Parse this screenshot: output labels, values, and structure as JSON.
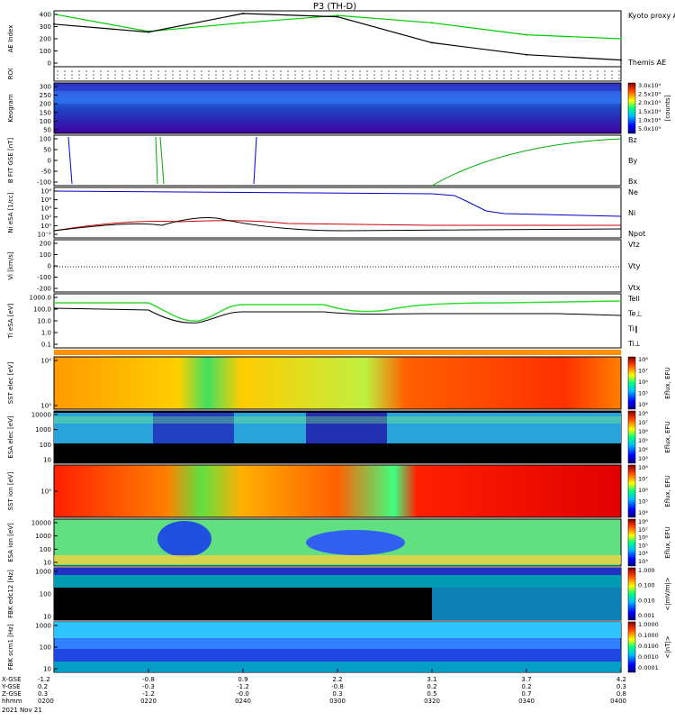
{
  "title": "P3 (TH-D)",
  "panels": [
    {
      "id": "ae",
      "ylabel": "AE Index",
      "yticks": [
        "400",
        "300",
        "200",
        "100",
        "0"
      ],
      "legend": [
        {
          "text": "Kyoto proxy AE",
          "color": "#00cc00"
        },
        {
          "text": "Themis AE",
          "color": "#000000"
        }
      ]
    },
    {
      "id": "roi",
      "ylabel": "ROI"
    },
    {
      "id": "keogram",
      "ylabel": "Keogram",
      "yticks": [
        "300",
        "250",
        "200",
        "150",
        "100",
        "50"
      ],
      "colorbar": [
        "3.0x10⁴",
        "2.5x10⁴",
        "2.0x10⁴",
        "1.5x10⁴",
        "1.0x10⁴",
        "5.0x10³"
      ],
      "cbar_label": "[counts]"
    },
    {
      "id": "bfit",
      "ylabel": "B FIT GSE [nT]",
      "yticks": [
        "100",
        "50",
        "0",
        "-50",
        "-100"
      ],
      "legend": [
        {
          "text": "Bz",
          "color": "#cc0000"
        },
        {
          "text": "By",
          "color": "#00aa00"
        },
        {
          "text": "Bx",
          "color": "#0000cc"
        }
      ]
    },
    {
      "id": "ni",
      "ylabel": "Ni eSA [1/cc]",
      "yticks": [
        "10⁸",
        "10⁶",
        "10⁴",
        "10²",
        "10⁰",
        "10⁻²"
      ],
      "legend": [
        {
          "text": "Ne",
          "color": "#cc0000"
        },
        {
          "text": "Ni",
          "color": "#000000"
        },
        {
          "text": "Npot",
          "color": "#0000cc"
        }
      ]
    },
    {
      "id": "vi",
      "ylabel": "Vi [km/s]",
      "yticks": [
        "200",
        "100",
        "0",
        "-100",
        "-200"
      ],
      "legend": [
        {
          "text": "Vtz",
          "color": "#cc0000"
        },
        {
          "text": "Vty",
          "color": "#00aa00"
        },
        {
          "text": "Vtx",
          "color": "#0000cc"
        }
      ]
    },
    {
      "id": "ti",
      "ylabel": "Ti eSA [eV]",
      "yticks": [
        "1000.0",
        "100.0",
        "10.0",
        "1.0",
        "0.1"
      ],
      "legend": [
        {
          "text": "Tell",
          "color": "#000000"
        },
        {
          "text": "Te⊥",
          "color": "#cc0000"
        },
        {
          "text": "Ti‖",
          "color": "#00aa00"
        },
        {
          "text": "Ti⊥",
          "color": "#0000cc"
        }
      ]
    },
    {
      "id": "sst_e",
      "ylabel": "SST elec [eV]",
      "yticks": [
        "10⁴",
        "10⁵"
      ],
      "cbar": [
        "10⁸",
        "10⁷",
        "10⁶",
        "10⁵",
        "10⁴"
      ],
      "cbar_label": "Eflux, EFU"
    },
    {
      "id": "esa_e",
      "ylabel": "ESA elec [eV]",
      "yticks": [
        "10000",
        "1000",
        "100",
        "10"
      ],
      "cbar": [
        "10⁸",
        "10⁷",
        "10⁶",
        "10⁵",
        "10⁴",
        "10³"
      ],
      "cbar_label": "Eflux, EFU"
    },
    {
      "id": "sst_i",
      "ylabel": "SST ion [eV]",
      "yticks": [
        "10⁵"
      ],
      "cbar": [
        "10⁸",
        "10⁷",
        "10⁶",
        "10⁵",
        "10⁴"
      ],
      "cbar_label": "Eflux, EFU"
    },
    {
      "id": "esa_i",
      "ylabel": "ESA ion [eV]",
      "yticks": [
        "10000",
        "1000",
        "100",
        "10"
      ],
      "cbar": [
        "10⁸",
        "10⁷",
        "10⁶",
        "10⁵",
        "10⁴",
        "10³"
      ],
      "cbar_label": "Eflux, EFU"
    },
    {
      "id": "fbk_e",
      "ylabel": "FBK edc12 [Hz]",
      "yticks": [
        "1000",
        "100",
        "10"
      ],
      "cbar": [
        "1.000",
        "0.100",
        "0.010",
        "0.001"
      ],
      "cbar_label": "<|mV/m|>"
    },
    {
      "id": "fbk_s",
      "ylabel": "FBK scm1 [Hz]",
      "yticks": [
        "1000",
        "100",
        "10"
      ],
      "cbar": [
        "1.0000",
        "0.1000",
        "0.0100",
        "0.0010",
        "0.0001"
      ],
      "cbar_label": "<|nT|>"
    }
  ],
  "xaxis": {
    "row_labels": [
      "X-GSE",
      "Y-GSE",
      "Z-GSE",
      "hhmm",
      "2021 Nov 21"
    ],
    "ticks": [
      {
        "x": "-1.2",
        "y": "0.2",
        "z": "0.3",
        "t": "0200"
      },
      {
        "x": "-0.8",
        "y": "-0.3",
        "z": "-1.2",
        "t": "0220"
      },
      {
        "x": "0.9",
        "y": "-1.2",
        "z": "-0.0",
        "t": "0240"
      },
      {
        "x": "2.2",
        "y": "-0.8",
        "z": "0.3",
        "t": "0300"
      },
      {
        "x": "3.1",
        "y": "0.2",
        "z": "0.5",
        "t": "0320"
      },
      {
        "x": "3.7",
        "y": "0.2",
        "z": "0.7",
        "t": "0340"
      },
      {
        "x": "4.2",
        "y": "0.3",
        "z": "0.8",
        "t": "0400"
      }
    ]
  },
  "chart_data": {
    "type": "line",
    "title": "P3 (TH-D)",
    "x": [
      "0200",
      "0220",
      "0240",
      "0300",
      "0320",
      "0340",
      "0400"
    ],
    "series": [
      {
        "name": "Kyoto proxy AE",
        "values": [
          395,
          265,
          330,
          385,
          330,
          240,
          210
        ]
      },
      {
        "name": "Themis AE",
        "values": [
          320,
          260,
          400,
          375,
          180,
          90,
          50
        ]
      }
    ],
    "ylabel": "AE Index",
    "ylim": [
      0,
      420
    ]
  }
}
